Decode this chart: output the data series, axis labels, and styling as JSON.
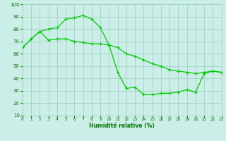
{
  "x": [
    0,
    1,
    2,
    3,
    4,
    5,
    6,
    7,
    8,
    9,
    10,
    11,
    12,
    13,
    14,
    15,
    16,
    17,
    18,
    19,
    20,
    21,
    22,
    23
  ],
  "line1": [
    65,
    72,
    78,
    80,
    81,
    88,
    89,
    91,
    88,
    81,
    67,
    45,
    32,
    33,
    27,
    27,
    28,
    28,
    29,
    31,
    29,
    44,
    46,
    45
  ],
  "line2": [
    65,
    72,
    78,
    71,
    72,
    72,
    70,
    69,
    68,
    68,
    67,
    65,
    60,
    58,
    55,
    52,
    50,
    47,
    46,
    45,
    44,
    45,
    46,
    45
  ],
  "line_color": "#00cc00",
  "bg_color": "#cceee8",
  "grid_color": "#99ccbb",
  "xlabel": "Humidité relative (%)",
  "ylim": [
    10,
    100
  ],
  "xlim": [
    0,
    23
  ],
  "yticks": [
    10,
    20,
    30,
    40,
    50,
    60,
    70,
    80,
    90,
    100
  ],
  "tick_color": "#007700",
  "xlabel_color": "#007700"
}
